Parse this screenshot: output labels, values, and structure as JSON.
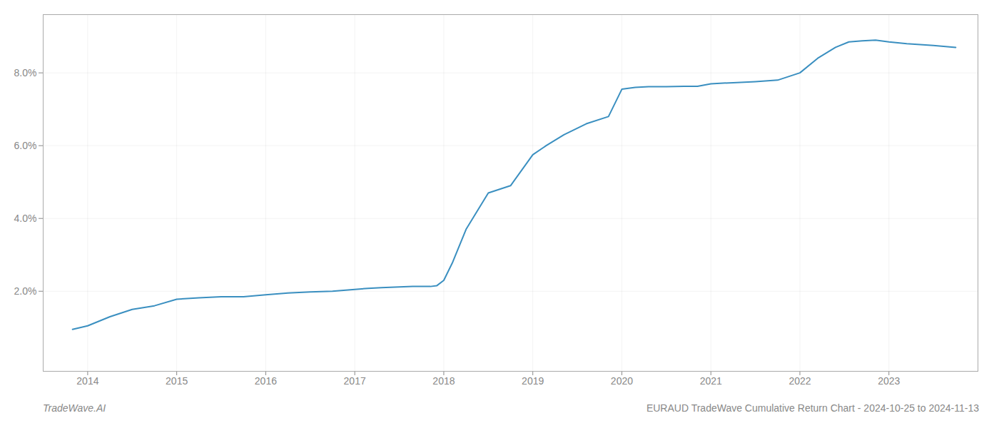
{
  "chart_data": {
    "type": "line",
    "x": [
      2013.83,
      2014.0,
      2014.25,
      2014.5,
      2014.75,
      2015.0,
      2015.25,
      2015.5,
      2015.75,
      2016.0,
      2016.25,
      2016.5,
      2016.75,
      2017.0,
      2017.15,
      2017.3,
      2017.5,
      2017.65,
      2017.75,
      2017.85,
      2017.92,
      2018.0,
      2018.1,
      2018.25,
      2018.5,
      2018.75,
      2019.0,
      2019.15,
      2019.35,
      2019.6,
      2019.85,
      2020.0,
      2020.15,
      2020.3,
      2020.5,
      2020.7,
      2020.85,
      2021.0,
      2021.25,
      2021.5,
      2021.75,
      2022.0,
      2022.2,
      2022.4,
      2022.55,
      2022.7,
      2022.85,
      2023.0,
      2023.2,
      2023.5,
      2023.75
    ],
    "values": [
      0.0095,
      0.0105,
      0.013,
      0.015,
      0.016,
      0.0178,
      0.0182,
      0.0185,
      0.0185,
      0.019,
      0.0195,
      0.0198,
      0.02,
      0.0205,
      0.0208,
      0.021,
      0.0212,
      0.0213,
      0.0213,
      0.0213,
      0.0215,
      0.023,
      0.028,
      0.037,
      0.047,
      0.049,
      0.0575,
      0.06,
      0.063,
      0.066,
      0.068,
      0.0755,
      0.076,
      0.0762,
      0.0762,
      0.0763,
      0.0763,
      0.077,
      0.0773,
      0.0776,
      0.078,
      0.08,
      0.084,
      0.087,
      0.0885,
      0.0888,
      0.089,
      0.0885,
      0.088,
      0.0875,
      0.087
    ],
    "color": "#3a8fc0",
    "xlim": [
      2013.5,
      2024.0
    ],
    "xticks": [
      2014,
      2015,
      2016,
      2017,
      2018,
      2019,
      2020,
      2021,
      2022,
      2023
    ],
    "ylim": [
      -0.002,
      0.096
    ],
    "yticks": [
      {
        "value": 0.02,
        "label": "2.0%"
      },
      {
        "value": 0.04,
        "label": "4.0%"
      },
      {
        "value": 0.06,
        "label": "6.0%"
      },
      {
        "value": 0.08,
        "label": "8.0%"
      }
    ],
    "grid": true,
    "annotations": [
      "TradeWave.AI",
      "EURAUD TradeWave Cumulative Return Chart - 2024-10-25 to 2024-11-13"
    ]
  }
}
